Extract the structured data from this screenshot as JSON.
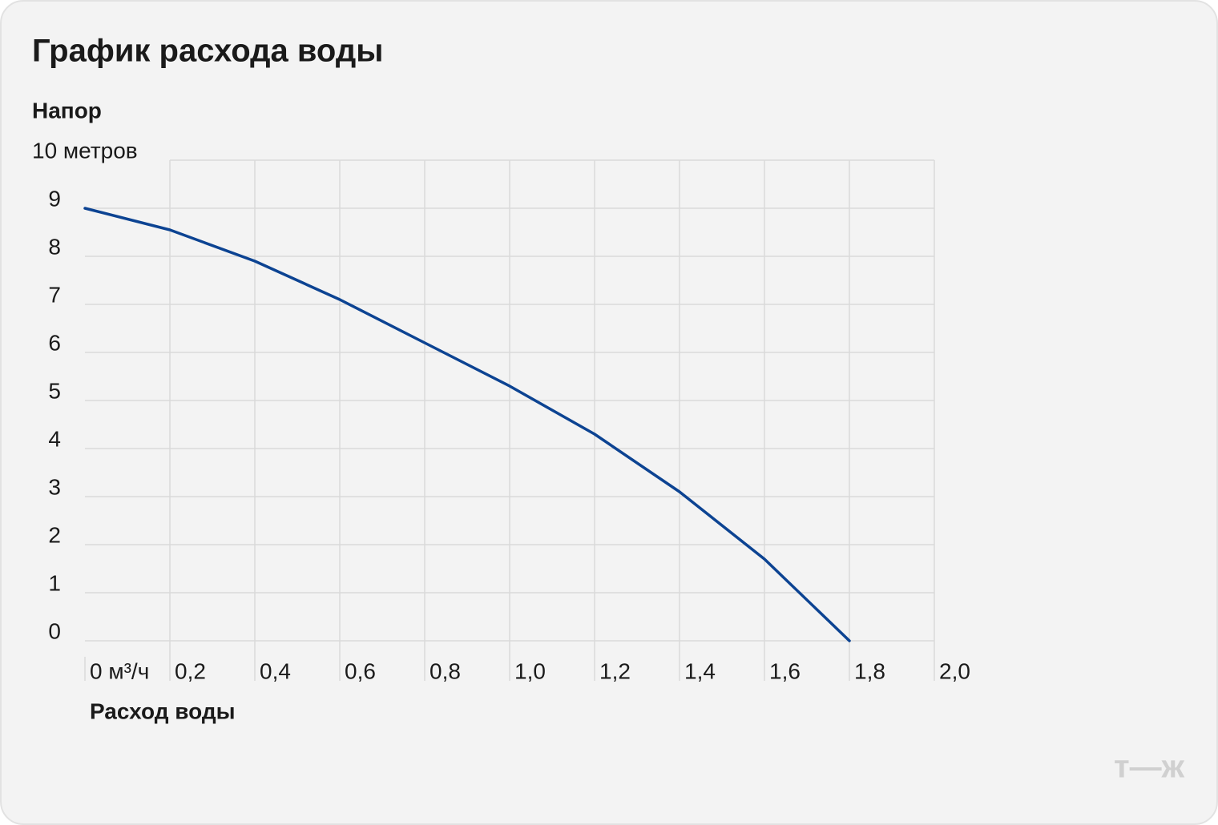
{
  "chart_data": {
    "type": "line",
    "title": "График расхода воды",
    "y_label": "Напор",
    "x_label": "Расход воды",
    "brand": "т—ж",
    "x": [
      0,
      0.2,
      0.4,
      0.6,
      0.8,
      1.0,
      1.2,
      1.4,
      1.6,
      1.8
    ],
    "series": [
      {
        "name": "Напор",
        "color": "#0c4392",
        "values": [
          9,
          8.55,
          7.9,
          7.1,
          6.2,
          5.3,
          4.3,
          3.1,
          1.7,
          0
        ]
      }
    ],
    "xlim": [
      0,
      2.0
    ],
    "xticks": [
      {
        "value": 0,
        "label": "0 м³/ч"
      },
      {
        "value": 0.2,
        "label": "0,2"
      },
      {
        "value": 0.4,
        "label": "0,4"
      },
      {
        "value": 0.6,
        "label": "0,6"
      },
      {
        "value": 0.8,
        "label": "0,8"
      },
      {
        "value": 1.0,
        "label": "1,0"
      },
      {
        "value": 1.2,
        "label": "1,2"
      },
      {
        "value": 1.4,
        "label": "1,4"
      },
      {
        "value": 1.6,
        "label": "1,6"
      },
      {
        "value": 1.8,
        "label": "1,8"
      },
      {
        "value": 2.0,
        "label": "2,0"
      }
    ],
    "ylim": [
      0,
      10
    ],
    "yticks": [
      0,
      1,
      2,
      3,
      4,
      5,
      6,
      7,
      8,
      9,
      {
        "value": 10,
        "label": "10 метров"
      }
    ],
    "grid": true
  }
}
